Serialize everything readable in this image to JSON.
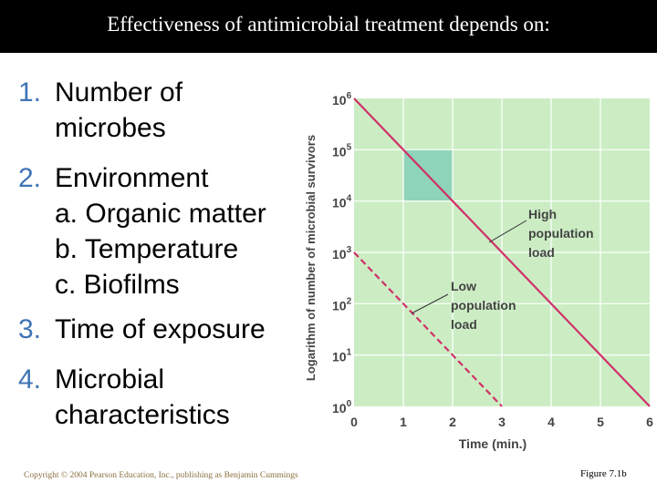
{
  "slide": {
    "title": "Effectiveness of antimicrobial treatment depends on:",
    "bullets": [
      {
        "num": "1.",
        "text": "Number of",
        "text2": "microbes"
      },
      {
        "num": "2.",
        "text": "Environment",
        "subs": [
          "a. Organic matter",
          "b. Temperature",
          "c. Biofilms"
        ]
      },
      {
        "num": "3.",
        "text": "Time of exposure"
      },
      {
        "num": "4.",
        "text": "Microbial",
        "text2": "characteristics"
      }
    ],
    "copyright": "Copyright © 2004 Pearson Education, Inc., publishing as Benjamin Cummings",
    "figure_label": "Figure 7.1b"
  },
  "chart_data": {
    "type": "line",
    "xlabel": "Time (min.)",
    "ylabel": "Logarithm of number of microbial survivors",
    "xlim": [
      0,
      6
    ],
    "ylim": [
      0,
      6
    ],
    "x_ticks": [
      "0",
      "1",
      "2",
      "3",
      "4",
      "5",
      "6"
    ],
    "y_ticks": [
      {
        "base": "10",
        "exp": "0"
      },
      {
        "base": "10",
        "exp": "1"
      },
      {
        "base": "10",
        "exp": "2"
      },
      {
        "base": "10",
        "exp": "3"
      },
      {
        "base": "10",
        "exp": "4"
      },
      {
        "base": "10",
        "exp": "5"
      },
      {
        "base": "10",
        "exp": "6"
      }
    ],
    "series": [
      {
        "name": "High population load",
        "label_lines": [
          "High",
          "population",
          "load"
        ],
        "style": "solid",
        "color": "#d0306a",
        "x": [
          0,
          6
        ],
        "y": [
          6,
          0
        ]
      },
      {
        "name": "Low population load",
        "label_lines": [
          "Low",
          "population",
          "load"
        ],
        "style": "dashed",
        "color": "#d0306a",
        "x": [
          0,
          3
        ],
        "y": [
          3,
          0
        ]
      }
    ],
    "highlight_box": {
      "x": [
        1,
        2
      ],
      "y": [
        4,
        5
      ],
      "color": "#8ed4b8"
    },
    "plot_bg": "#ccedc4",
    "grid": true
  }
}
